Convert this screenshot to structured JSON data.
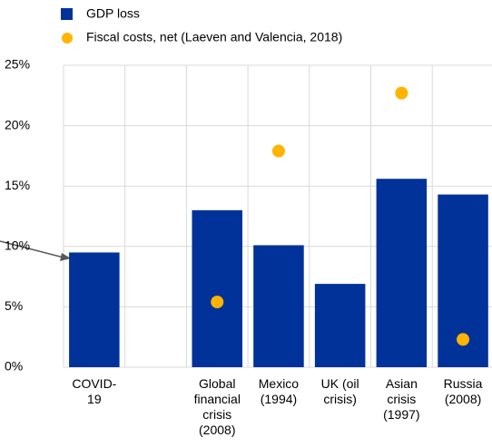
{
  "chart_data": {
    "type": "bar",
    "categories": [
      "COVID-19",
      null,
      "Global financial crisis (2008)",
      "Mexico (1994)",
      "UK (oil crisis)",
      "Asian crisis (1997)",
      "Russia (2008)"
    ],
    "series": [
      {
        "name": "GDP loss",
        "color": "#003299",
        "values": [
          9.5,
          null,
          13.0,
          10.1,
          6.9,
          15.6,
          14.3
        ]
      },
      {
        "name": "Fiscal costs, net (Laeven and Valencia, 2018)",
        "color": "#ffb400",
        "marker": "dot",
        "values": [
          null,
          null,
          5.4,
          17.9,
          null,
          22.7,
          2.3
        ]
      }
    ],
    "ylim": [
      0,
      25
    ],
    "yticks": [
      {
        "value": 0,
        "label": "0%"
      },
      {
        "value": 5,
        "label": "5%"
      },
      {
        "value": 10,
        "label": "10%"
      },
      {
        "value": 15,
        "label": "15%"
      },
      {
        "value": 20,
        "label": "20%"
      },
      {
        "value": 25,
        "label": "25%"
      }
    ],
    "grid": true
  }
}
